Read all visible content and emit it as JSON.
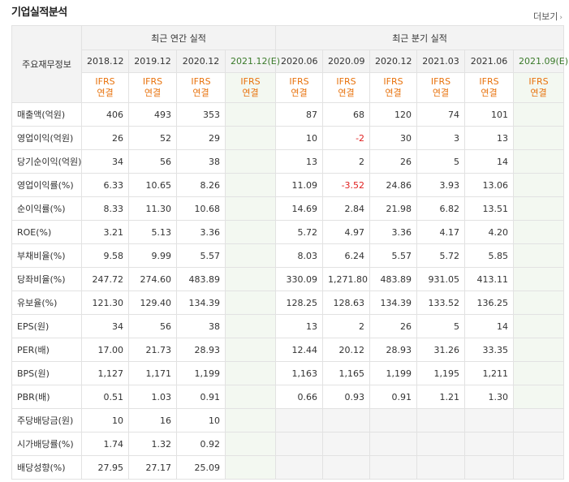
{
  "title": "기업실적분석",
  "more_label": "더보기",
  "header": {
    "row_label": "주요재무정보",
    "annual_group": "최근 연간 실적",
    "quarter_group": "최근 분기 실적",
    "annual_periods": [
      "2018.12",
      "2019.12",
      "2020.12",
      "2021.12(E)"
    ],
    "quarter_periods": [
      "2020.06",
      "2020.09",
      "2020.12",
      "2021.03",
      "2021.06",
      "2021.09(E)"
    ],
    "basis_line1": "IFRS",
    "basis_line2": "연결"
  },
  "rows": [
    {
      "label": "매출액(억원)",
      "annual": [
        "406",
        "493",
        "353",
        ""
      ],
      "quarter": [
        "87",
        "68",
        "120",
        "74",
        "101",
        ""
      ]
    },
    {
      "label": "영업이익(억원)",
      "annual": [
        "26",
        "52",
        "29",
        ""
      ],
      "quarter": [
        "10",
        "-2",
        "30",
        "3",
        "13",
        ""
      ]
    },
    {
      "label": "당기순이익(억원)",
      "annual": [
        "34",
        "56",
        "38",
        ""
      ],
      "quarter": [
        "13",
        "2",
        "26",
        "5",
        "14",
        ""
      ]
    },
    {
      "label": "영업이익률(%)",
      "annual": [
        "6.33",
        "10.65",
        "8.26",
        ""
      ],
      "quarter": [
        "11.09",
        "-3.52",
        "24.86",
        "3.93",
        "13.06",
        ""
      ]
    },
    {
      "label": "순이익률(%)",
      "annual": [
        "8.33",
        "11.30",
        "10.68",
        ""
      ],
      "quarter": [
        "14.69",
        "2.84",
        "21.98",
        "6.82",
        "13.51",
        ""
      ]
    },
    {
      "label": "ROE(%)",
      "annual": [
        "3.21",
        "5.13",
        "3.36",
        ""
      ],
      "quarter": [
        "5.72",
        "4.97",
        "3.36",
        "4.17",
        "4.20",
        ""
      ]
    },
    {
      "label": "부채비율(%)",
      "annual": [
        "9.58",
        "9.99",
        "5.57",
        ""
      ],
      "quarter": [
        "8.03",
        "6.24",
        "5.57",
        "5.72",
        "5.85",
        ""
      ]
    },
    {
      "label": "당좌비율(%)",
      "annual": [
        "247.72",
        "274.60",
        "483.89",
        ""
      ],
      "quarter": [
        "330.09",
        "1,271.80",
        "483.89",
        "931.05",
        "413.11",
        ""
      ]
    },
    {
      "label": "유보율(%)",
      "annual": [
        "121.30",
        "129.40",
        "134.39",
        ""
      ],
      "quarter": [
        "128.25",
        "128.63",
        "134.39",
        "133.52",
        "136.25",
        ""
      ]
    },
    {
      "label": "EPS(원)",
      "annual": [
        "34",
        "56",
        "38",
        ""
      ],
      "quarter": [
        "13",
        "2",
        "26",
        "5",
        "14",
        ""
      ]
    },
    {
      "label": "PER(배)",
      "annual": [
        "17.00",
        "21.73",
        "28.93",
        ""
      ],
      "quarter": [
        "12.44",
        "20.12",
        "28.93",
        "31.26",
        "33.35",
        ""
      ]
    },
    {
      "label": "BPS(원)",
      "annual": [
        "1,127",
        "1,171",
        "1,199",
        ""
      ],
      "quarter": [
        "1,163",
        "1,165",
        "1,199",
        "1,195",
        "1,211",
        ""
      ]
    },
    {
      "label": "PBR(배)",
      "annual": [
        "0.51",
        "1.03",
        "0.91",
        ""
      ],
      "quarter": [
        "0.66",
        "0.93",
        "0.91",
        "1.21",
        "1.30",
        ""
      ]
    },
    {
      "label": "주당배당금(원)",
      "annual": [
        "10",
        "16",
        "10",
        ""
      ],
      "quarter": [
        "",
        "",
        "",
        "",
        "",
        ""
      ]
    },
    {
      "label": "시가배당률(%)",
      "annual": [
        "1.74",
        "1.32",
        "0.92",
        ""
      ],
      "quarter": [
        "",
        "",
        "",
        "",
        "",
        ""
      ]
    },
    {
      "label": "배당성향(%)",
      "annual": [
        "27.95",
        "27.17",
        "25.09",
        ""
      ],
      "quarter": [
        "",
        "",
        "",
        "",
        "",
        ""
      ]
    }
  ],
  "group_starts": [
    0,
    3,
    6,
    9,
    13
  ],
  "dividend_rows_start": 13
}
